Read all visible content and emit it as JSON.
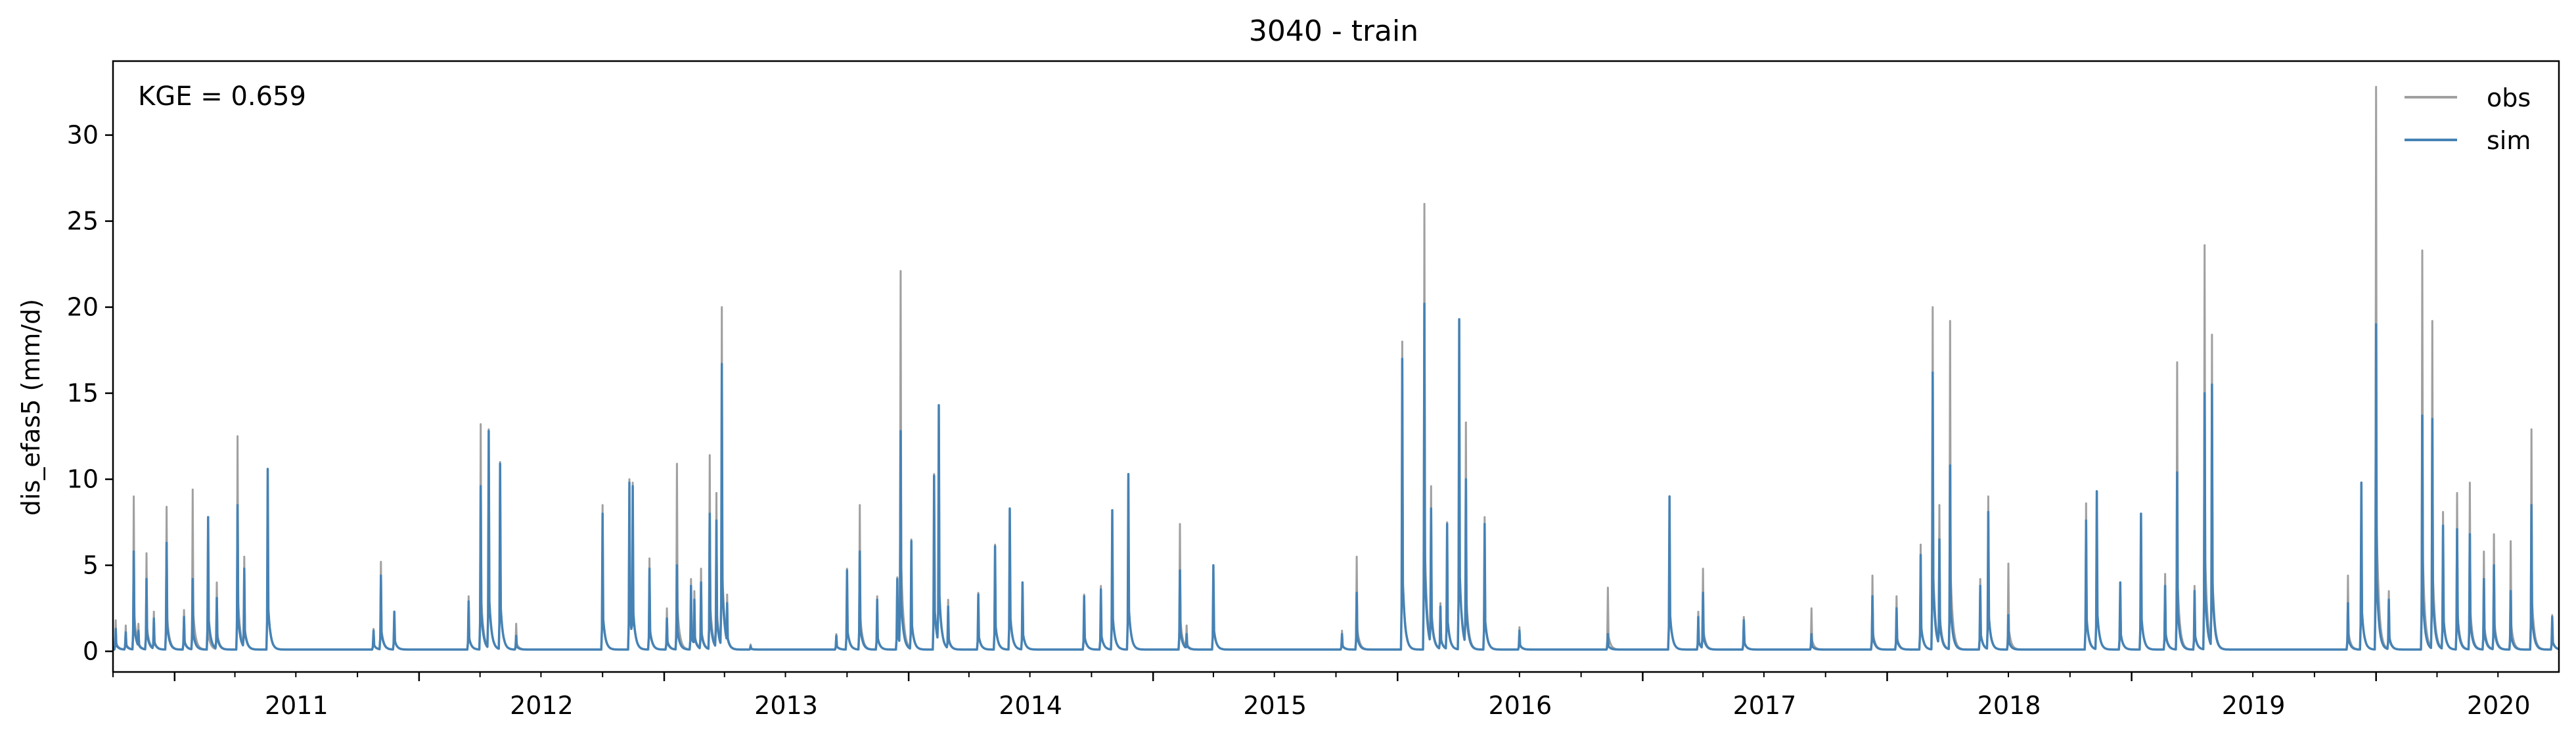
{
  "chart_data": {
    "type": "line",
    "title": "3040 - train",
    "xlabel": "",
    "ylabel": "dis_efas5 (mm/d)",
    "annotation": "KGE = 0.659",
    "x_ticks": [
      "2011",
      "2012",
      "2013",
      "2014",
      "2015",
      "2016",
      "2017",
      "2018",
      "2019",
      "2020"
    ],
    "y_ticks": [
      "0",
      "5",
      "10",
      "15",
      "20",
      "25",
      "30"
    ],
    "xlim": [
      "2010-10-01",
      "2020-09-30"
    ],
    "ylim": [
      -1.2,
      34.3
    ],
    "grid": false,
    "legend_position": "top-right",
    "baseline": 0.1,
    "series": [
      {
        "name": "obs",
        "color": "#a0a0a0",
        "peaks": [
          [
            "2010-10-05",
            1.8
          ],
          [
            "2010-10-20",
            1.5
          ],
          [
            "2010-11-01",
            9.0
          ],
          [
            "2010-11-08",
            1.6
          ],
          [
            "2010-11-20",
            5.7
          ],
          [
            "2010-12-01",
            2.3
          ],
          [
            "2010-12-20",
            8.4
          ],
          [
            "2011-01-15",
            2.4
          ],
          [
            "2011-01-28",
            9.4
          ],
          [
            "2011-02-20",
            3.5
          ],
          [
            "2011-03-05",
            4.0
          ],
          [
            "2011-04-05",
            12.5
          ],
          [
            "2011-04-15",
            5.5
          ],
          [
            "2011-05-20",
            10.6
          ],
          [
            "2011-10-25",
            1.3
          ],
          [
            "2011-11-05",
            5.2
          ],
          [
            "2011-11-25",
            2.3
          ],
          [
            "2012-03-15",
            3.2
          ],
          [
            "2012-04-02",
            13.2
          ],
          [
            "2012-04-14",
            12.9
          ],
          [
            "2012-05-01",
            11.0
          ],
          [
            "2012-05-25",
            1.6
          ],
          [
            "2012-10-01",
            8.5
          ],
          [
            "2012-11-10",
            10.0
          ],
          [
            "2012-11-15",
            9.8
          ],
          [
            "2012-12-10",
            5.4
          ],
          [
            "2013-01-05",
            2.5
          ],
          [
            "2013-01-20",
            10.9
          ],
          [
            "2013-02-10",
            4.2
          ],
          [
            "2013-02-15",
            3.5
          ],
          [
            "2013-02-25",
            4.8
          ],
          [
            "2013-03-10",
            11.4
          ],
          [
            "2013-03-20",
            9.2
          ],
          [
            "2013-03-28",
            20.0
          ],
          [
            "2013-04-05",
            3.3
          ],
          [
            "2013-05-10",
            0.4
          ],
          [
            "2013-09-15",
            1.0
          ],
          [
            "2013-10-01",
            4.8
          ],
          [
            "2013-10-20",
            8.5
          ],
          [
            "2013-11-15",
            3.2
          ],
          [
            "2013-12-15",
            4.3
          ],
          [
            "2013-12-20",
            22.1
          ],
          [
            "2014-01-05",
            6.5
          ],
          [
            "2014-02-08",
            10.3
          ],
          [
            "2014-02-15",
            14.3
          ],
          [
            "2014-03-01",
            3.0
          ],
          [
            "2014-04-15",
            3.4
          ],
          [
            "2014-05-10",
            6.2
          ],
          [
            "2014-06-01",
            8.3
          ],
          [
            "2014-06-20",
            4.0
          ],
          [
            "2014-09-20",
            3.3
          ],
          [
            "2014-10-15",
            3.8
          ],
          [
            "2014-11-01",
            8.2
          ],
          [
            "2014-11-25",
            10.3
          ],
          [
            "2015-02-10",
            7.4
          ],
          [
            "2015-02-20",
            1.5
          ],
          [
            "2015-04-01",
            5.0
          ],
          [
            "2015-10-10",
            1.2
          ],
          [
            "2015-11-01",
            5.5
          ],
          [
            "2016-01-08",
            18.0
          ],
          [
            "2016-02-10",
            26.0
          ],
          [
            "2016-02-20",
            9.6
          ],
          [
            "2016-03-05",
            2.8
          ],
          [
            "2016-03-15",
            7.5
          ],
          [
            "2016-04-02",
            19.3
          ],
          [
            "2016-04-12",
            13.3
          ],
          [
            "2016-05-10",
            7.8
          ],
          [
            "2016-07-01",
            1.4
          ],
          [
            "2016-11-10",
            3.7
          ],
          [
            "2017-02-10",
            9.0
          ],
          [
            "2017-03-25",
            2.3
          ],
          [
            "2017-04-01",
            4.8
          ],
          [
            "2017-06-01",
            2.0
          ],
          [
            "2017-09-10",
            2.5
          ],
          [
            "2017-12-10",
            4.4
          ],
          [
            "2018-01-15",
            3.2
          ],
          [
            "2018-02-20",
            6.2
          ],
          [
            "2018-03-10",
            20.0
          ],
          [
            "2018-03-20",
            8.5
          ],
          [
            "2018-04-05",
            19.2
          ],
          [
            "2018-05-20",
            4.2
          ],
          [
            "2018-06-01",
            9.0
          ],
          [
            "2018-07-01",
            5.1
          ],
          [
            "2018-10-25",
            8.6
          ],
          [
            "2018-11-10",
            9.3
          ],
          [
            "2018-12-15",
            4.0
          ],
          [
            "2019-01-15",
            8.0
          ],
          [
            "2019-02-20",
            4.5
          ],
          [
            "2019-03-10",
            16.8
          ],
          [
            "2019-04-05",
            3.8
          ],
          [
            "2019-04-20",
            23.6
          ],
          [
            "2019-05-01",
            18.4
          ],
          [
            "2019-11-20",
            4.4
          ],
          [
            "2019-12-10",
            9.8
          ],
          [
            "2020-01-01",
            32.8
          ],
          [
            "2020-01-20",
            3.5
          ],
          [
            "2020-03-10",
            23.3
          ],
          [
            "2020-03-25",
            19.2
          ],
          [
            "2020-04-10",
            8.1
          ],
          [
            "2020-05-01",
            9.2
          ],
          [
            "2020-05-20",
            9.8
          ],
          [
            "2020-06-10",
            5.8
          ],
          [
            "2020-06-25",
            6.8
          ],
          [
            "2020-07-20",
            6.4
          ],
          [
            "2020-08-20",
            12.9
          ],
          [
            "2020-09-20",
            2.1
          ]
        ]
      },
      {
        "name": "sim",
        "color": "#4682b4",
        "peaks": [
          [
            "2010-10-05",
            1.3
          ],
          [
            "2010-10-20",
            1.1
          ],
          [
            "2010-11-01",
            5.8
          ],
          [
            "2010-11-08",
            1.2
          ],
          [
            "2010-11-20",
            4.2
          ],
          [
            "2010-12-01",
            1.9
          ],
          [
            "2010-12-20",
            6.3
          ],
          [
            "2011-01-15",
            2.0
          ],
          [
            "2011-01-28",
            4.2
          ],
          [
            "2011-02-20",
            7.8
          ],
          [
            "2011-03-05",
            3.1
          ],
          [
            "2011-04-05",
            8.5
          ],
          [
            "2011-04-15",
            4.8
          ],
          [
            "2011-05-20",
            10.6
          ],
          [
            "2011-10-25",
            1.2
          ],
          [
            "2011-11-05",
            4.4
          ],
          [
            "2011-11-25",
            2.3
          ],
          [
            "2012-03-15",
            2.9
          ],
          [
            "2012-04-02",
            9.6
          ],
          [
            "2012-04-14",
            12.8
          ],
          [
            "2012-05-01",
            10.9
          ],
          [
            "2012-05-25",
            0.9
          ],
          [
            "2012-10-01",
            8.0
          ],
          [
            "2012-11-10",
            9.8
          ],
          [
            "2012-11-15",
            9.6
          ],
          [
            "2012-12-10",
            4.8
          ],
          [
            "2013-01-05",
            1.9
          ],
          [
            "2013-01-20",
            5.0
          ],
          [
            "2013-02-10",
            3.8
          ],
          [
            "2013-02-15",
            3.0
          ],
          [
            "2013-02-25",
            4.0
          ],
          [
            "2013-03-10",
            8.0
          ],
          [
            "2013-03-20",
            7.6
          ],
          [
            "2013-03-28",
            16.7
          ],
          [
            "2013-04-05",
            2.8
          ],
          [
            "2013-05-10",
            0.3
          ],
          [
            "2013-09-15",
            0.9
          ],
          [
            "2013-10-01",
            4.7
          ],
          [
            "2013-10-20",
            5.8
          ],
          [
            "2013-11-15",
            3.0
          ],
          [
            "2013-12-15",
            4.2
          ],
          [
            "2013-12-20",
            12.8
          ],
          [
            "2014-01-05",
            6.4
          ],
          [
            "2014-02-08",
            10.2
          ],
          [
            "2014-02-15",
            14.3
          ],
          [
            "2014-03-01",
            2.6
          ],
          [
            "2014-04-15",
            3.3
          ],
          [
            "2014-05-10",
            6.1
          ],
          [
            "2014-06-01",
            8.3
          ],
          [
            "2014-06-20",
            4.0
          ],
          [
            "2014-09-20",
            3.2
          ],
          [
            "2014-10-15",
            3.6
          ],
          [
            "2014-11-01",
            8.2
          ],
          [
            "2014-11-25",
            10.3
          ],
          [
            "2015-02-10",
            4.7
          ],
          [
            "2015-02-20",
            1.0
          ],
          [
            "2015-04-01",
            5.0
          ],
          [
            "2015-10-10",
            1.0
          ],
          [
            "2015-11-01",
            3.4
          ],
          [
            "2016-01-08",
            17.0
          ],
          [
            "2016-02-10",
            20.2
          ],
          [
            "2016-02-20",
            8.3
          ],
          [
            "2016-03-05",
            2.6
          ],
          [
            "2016-03-15",
            7.4
          ],
          [
            "2016-04-02",
            19.3
          ],
          [
            "2016-04-12",
            10.0
          ],
          [
            "2016-05-10",
            7.4
          ],
          [
            "2016-07-01",
            1.2
          ],
          [
            "2016-11-10",
            1.0
          ],
          [
            "2017-02-10",
            9.0
          ],
          [
            "2017-03-25",
            2.0
          ],
          [
            "2017-04-01",
            3.4
          ],
          [
            "2017-06-01",
            1.8
          ],
          [
            "2017-09-10",
            1.0
          ],
          [
            "2017-12-10",
            3.2
          ],
          [
            "2018-01-15",
            2.5
          ],
          [
            "2018-02-20",
            5.6
          ],
          [
            "2018-03-10",
            16.2
          ],
          [
            "2018-03-20",
            6.5
          ],
          [
            "2018-04-05",
            10.8
          ],
          [
            "2018-05-20",
            3.8
          ],
          [
            "2018-06-01",
            8.1
          ],
          [
            "2018-07-01",
            2.1
          ],
          [
            "2018-10-25",
            7.6
          ],
          [
            "2018-11-10",
            9.3
          ],
          [
            "2018-12-15",
            4.0
          ],
          [
            "2019-01-15",
            8.0
          ],
          [
            "2019-02-20",
            3.8
          ],
          [
            "2019-03-10",
            10.4
          ],
          [
            "2019-04-05",
            3.5
          ],
          [
            "2019-04-20",
            15.0
          ],
          [
            "2019-05-01",
            15.5
          ],
          [
            "2019-11-20",
            2.8
          ],
          [
            "2019-12-10",
            9.8
          ],
          [
            "2020-01-01",
            19.0
          ],
          [
            "2020-01-20",
            3.0
          ],
          [
            "2020-03-10",
            13.7
          ],
          [
            "2020-03-25",
            13.5
          ],
          [
            "2020-04-10",
            7.3
          ],
          [
            "2020-05-01",
            7.1
          ],
          [
            "2020-05-20",
            6.8
          ],
          [
            "2020-06-10",
            4.2
          ],
          [
            "2020-06-25",
            5.0
          ],
          [
            "2020-07-20",
            3.5
          ],
          [
            "2020-08-20",
            8.5
          ],
          [
            "2020-09-20",
            2.0
          ]
        ]
      }
    ]
  }
}
